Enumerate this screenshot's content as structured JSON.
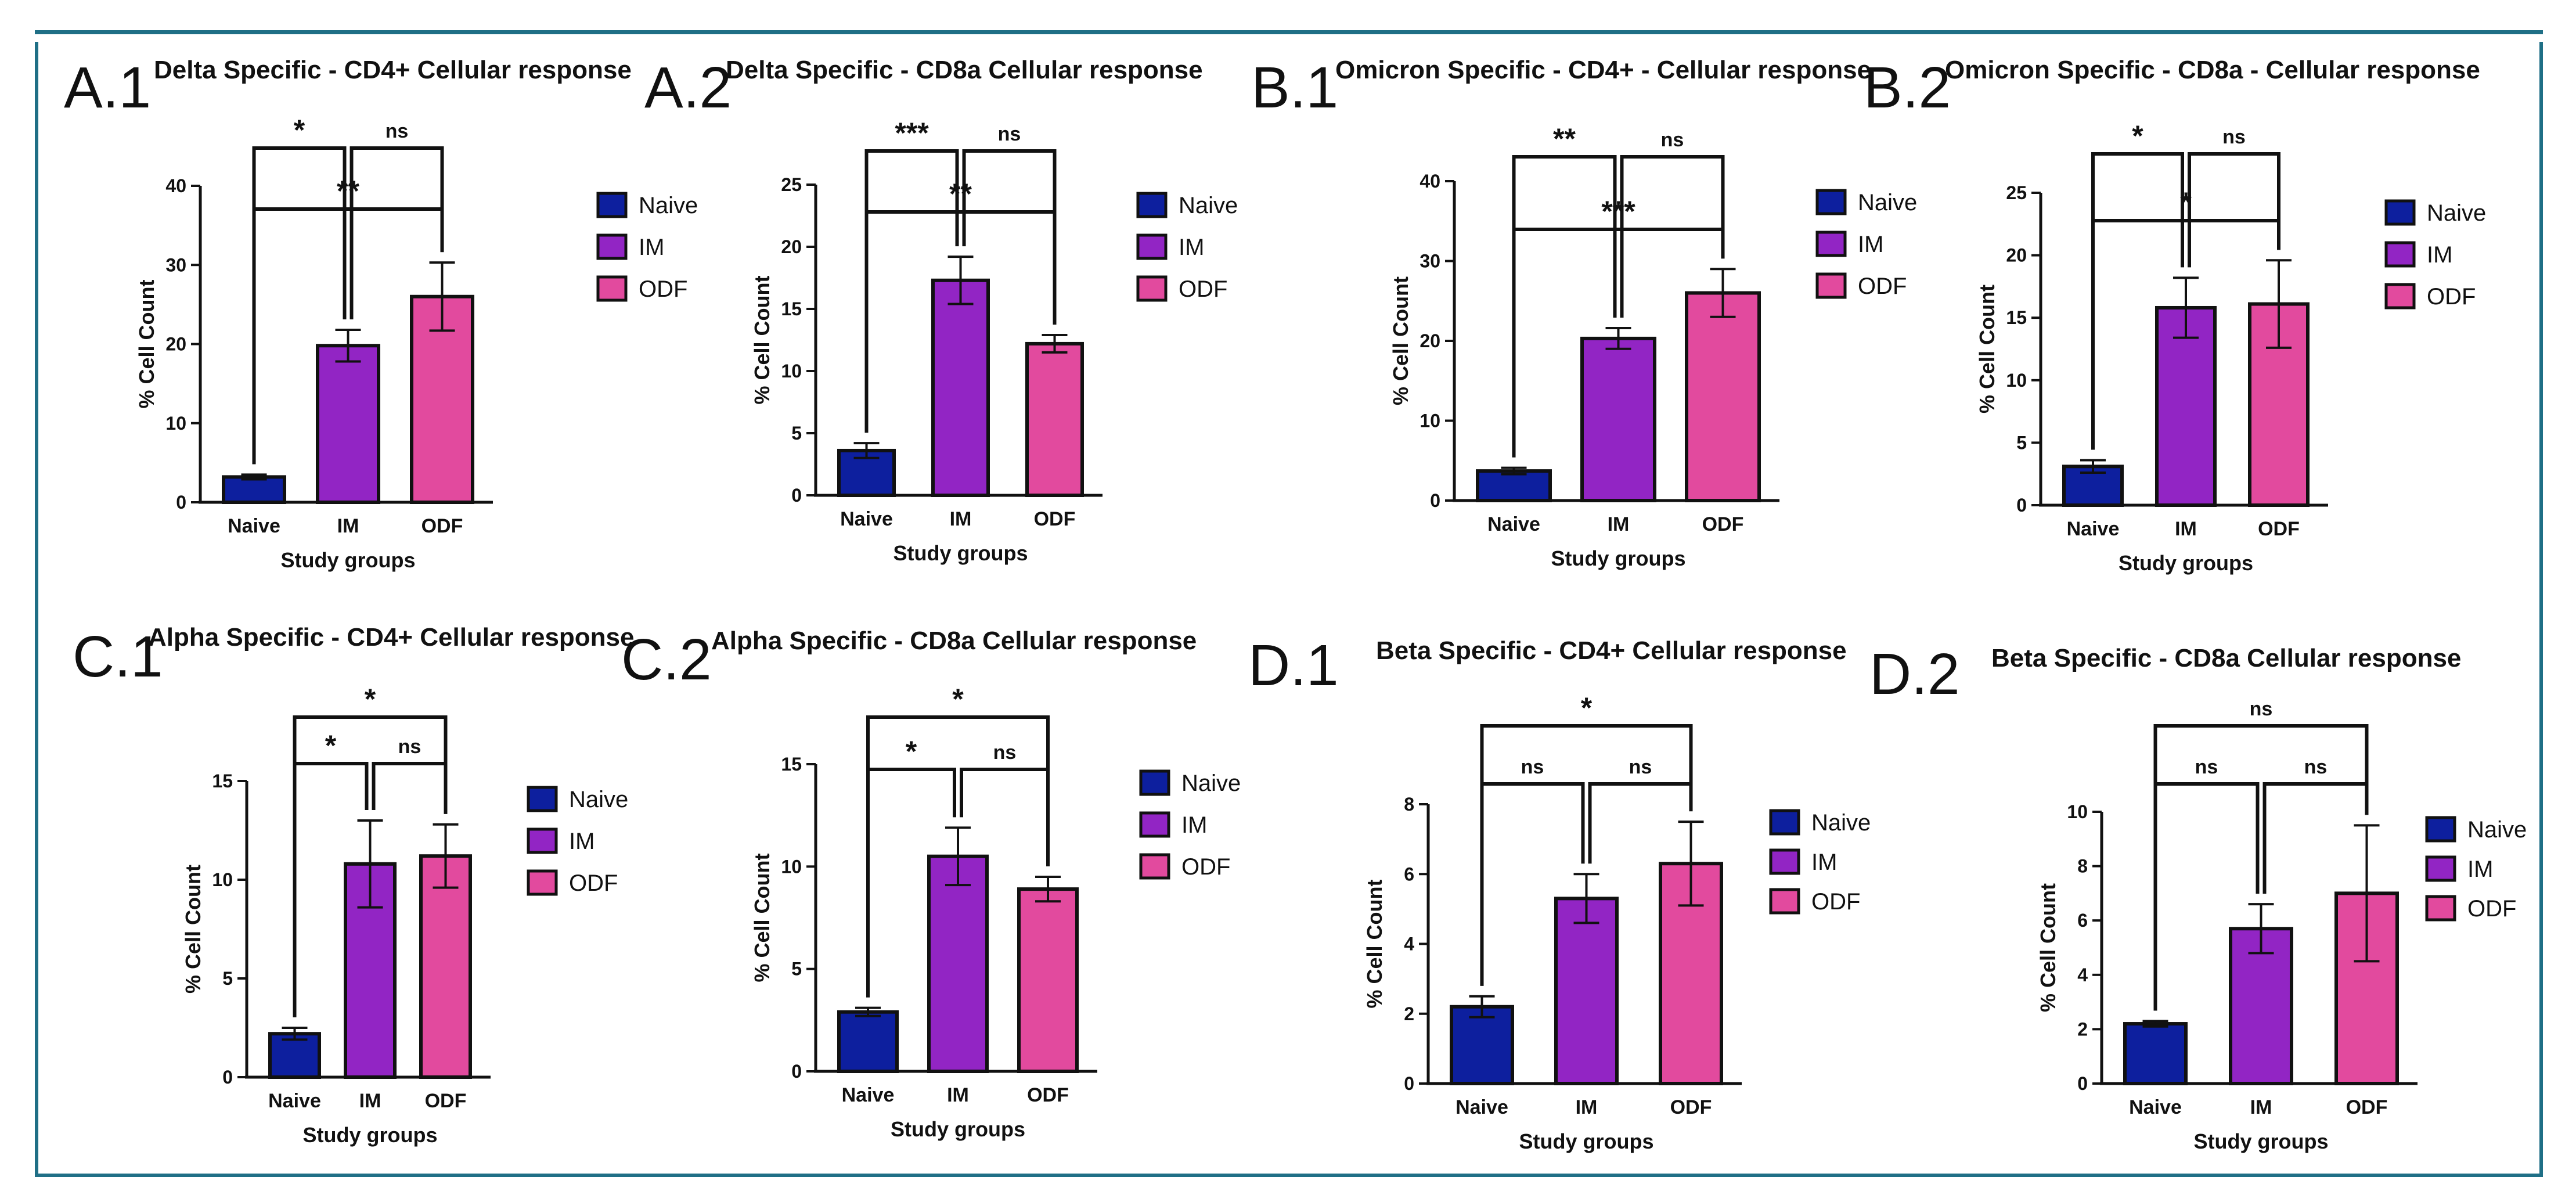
{
  "colors": {
    "naive": "#0d1f9e",
    "im": "#9225c4",
    "odf": "#e24a9e",
    "frame": "#1f6f86",
    "ink": "#111111"
  },
  "chart_data": [
    {
      "type": "bar",
      "panel": "A.1",
      "title": "Delta Specific - CD4+ Cellular response",
      "xlabel": "Study groups",
      "ylabel": "% Cell Count",
      "categories": [
        "Naive",
        "IM",
        "ODF"
      ],
      "values": [
        3.2,
        19.8,
        26.0
      ],
      "errors": [
        0.3,
        2.0,
        4.3
      ],
      "ylim": [
        0,
        40
      ],
      "yticks": [
        0,
        10,
        20,
        30,
        40
      ],
      "legend": [
        "Naive",
        "IM",
        "ODF"
      ],
      "comparisons": [
        {
          "from": 0,
          "to": 1,
          "label": "*"
        },
        {
          "from": 1,
          "to": 2,
          "label": "ns"
        },
        {
          "from": 0,
          "to": 2,
          "label": "**"
        }
      ]
    },
    {
      "type": "bar",
      "panel": "A.2",
      "title": "Delta Specific - CD8a Cellular response",
      "xlabel": "Study groups",
      "ylabel": "% Cell Count",
      "categories": [
        "Naive",
        "IM",
        "ODF"
      ],
      "values": [
        3.6,
        17.3,
        12.2
      ],
      "errors": [
        0.6,
        1.9,
        0.7
      ],
      "ylim": [
        0,
        25
      ],
      "yticks": [
        0,
        5,
        10,
        15,
        20,
        25
      ],
      "legend": [
        "Naive",
        "IM",
        "ODF"
      ],
      "comparisons": [
        {
          "from": 0,
          "to": 1,
          "label": "***"
        },
        {
          "from": 1,
          "to": 2,
          "label": "ns"
        },
        {
          "from": 0,
          "to": 2,
          "label": "**"
        }
      ]
    },
    {
      "type": "bar",
      "panel": "B.1",
      "title": "Omicron Specific - CD4+ - Cellular response",
      "xlabel": "Study groups",
      "ylabel": "% Cell Count",
      "categories": [
        "Naive",
        "IM",
        "ODF"
      ],
      "values": [
        3.7,
        20.3,
        26.0
      ],
      "errors": [
        0.4,
        1.3,
        3.0
      ],
      "ylim": [
        0,
        40
      ],
      "yticks": [
        0,
        10,
        20,
        30,
        40
      ],
      "legend": [
        "Naive",
        "IM",
        "ODF"
      ],
      "comparisons": [
        {
          "from": 0,
          "to": 1,
          "label": "**"
        },
        {
          "from": 1,
          "to": 2,
          "label": "ns"
        },
        {
          "from": 0,
          "to": 2,
          "label": "***"
        }
      ]
    },
    {
      "type": "bar",
      "panel": "B.2",
      "title": "Omicron Specific - CD8a - Cellular response",
      "xlabel": "Study groups",
      "ylabel": "% Cell Count",
      "categories": [
        "Naive",
        "IM",
        "ODF"
      ],
      "values": [
        3.1,
        15.8,
        16.1
      ],
      "errors": [
        0.5,
        2.4,
        3.5
      ],
      "ylim": [
        0,
        25
      ],
      "yticks": [
        0,
        5,
        10,
        15,
        20,
        25
      ],
      "legend": [
        "Naive",
        "IM",
        "ODF"
      ],
      "comparisons": [
        {
          "from": 0,
          "to": 1,
          "label": "*"
        },
        {
          "from": 1,
          "to": 2,
          "label": "ns"
        },
        {
          "from": 0,
          "to": 2,
          "label": "*"
        }
      ]
    },
    {
      "type": "bar",
      "panel": "C.1",
      "title": "Alpha Specific - CD4+ Cellular response",
      "xlabel": "Study groups",
      "ylabel": "% Cell Count",
      "categories": [
        "Naive",
        "IM",
        "ODF"
      ],
      "values": [
        2.2,
        10.8,
        11.2
      ],
      "errors": [
        0.3,
        2.2,
        1.6
      ],
      "ylim": [
        0,
        15
      ],
      "yticks": [
        0,
        5,
        10,
        15
      ],
      "legend": [
        "Naive",
        "IM",
        "ODF"
      ],
      "comparisons": [
        {
          "from": 0,
          "to": 1,
          "label": "*"
        },
        {
          "from": 1,
          "to": 2,
          "label": "ns"
        },
        {
          "from": 0,
          "to": 2,
          "label": "*"
        }
      ]
    },
    {
      "type": "bar",
      "panel": "C.2",
      "title": "Alpha Specific - CD8a Cellular response",
      "xlabel": "Study groups",
      "ylabel": "% Cell Count",
      "categories": [
        "Naive",
        "IM",
        "ODF"
      ],
      "values": [
        2.9,
        10.5,
        8.9
      ],
      "errors": [
        0.2,
        1.4,
        0.6
      ],
      "ylim": [
        0,
        15
      ],
      "yticks": [
        0,
        5,
        10,
        15
      ],
      "legend": [
        "Naive",
        "IM",
        "ODF"
      ],
      "comparisons": [
        {
          "from": 0,
          "to": 1,
          "label": "*"
        },
        {
          "from": 1,
          "to": 2,
          "label": "ns"
        },
        {
          "from": 0,
          "to": 2,
          "label": "*"
        }
      ]
    },
    {
      "type": "bar",
      "panel": "D.1",
      "title": "Beta Specific - CD4+ Cellular response",
      "xlabel": "Study groups",
      "ylabel": "% Cell Count",
      "categories": [
        "Naive",
        "IM",
        "ODF"
      ],
      "values": [
        2.2,
        5.3,
        6.3
      ],
      "errors": [
        0.3,
        0.7,
        1.2
      ],
      "ylim": [
        0,
        8
      ],
      "yticks": [
        0,
        2,
        4,
        6,
        8
      ],
      "legend": [
        "Naive",
        "IM",
        "ODF"
      ],
      "comparisons": [
        {
          "from": 0,
          "to": 1,
          "label": "ns"
        },
        {
          "from": 1,
          "to": 2,
          "label": "ns"
        },
        {
          "from": 0,
          "to": 2,
          "label": "*"
        }
      ]
    },
    {
      "type": "bar",
      "panel": "D.2",
      "title": "Beta Specific - CD8a Cellular response",
      "xlabel": "Study groups",
      "ylabel": "% Cell Count",
      "categories": [
        "Naive",
        "IM",
        "ODF"
      ],
      "values": [
        2.2,
        5.7,
        7.0
      ],
      "errors": [
        0.1,
        0.9,
        2.5
      ],
      "ylim": [
        0,
        10
      ],
      "yticks": [
        0,
        2,
        4,
        6,
        8,
        10
      ],
      "legend": [
        "Naive",
        "IM",
        "ODF"
      ],
      "comparisons": [
        {
          "from": 0,
          "to": 1,
          "label": "ns"
        },
        {
          "from": 1,
          "to": 2,
          "label": "ns"
        },
        {
          "from": 0,
          "to": 2,
          "label": "ns"
        }
      ]
    }
  ]
}
